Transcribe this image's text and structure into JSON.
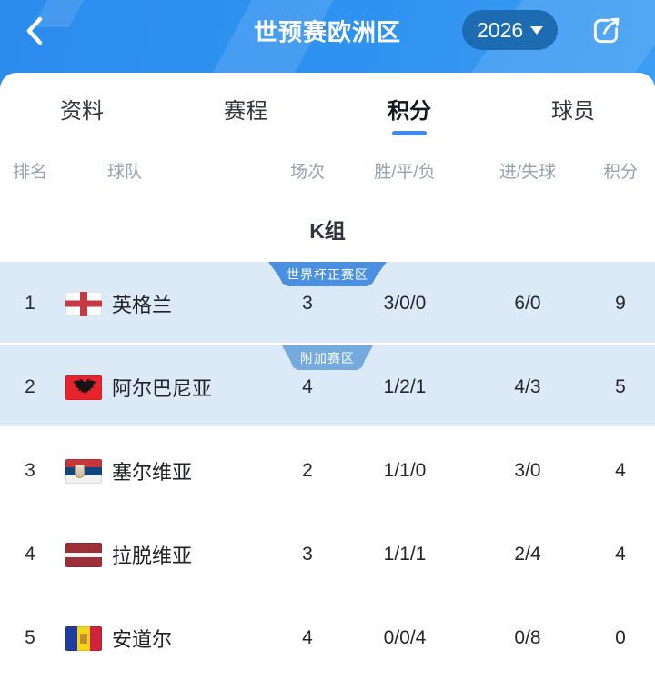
{
  "header": {
    "title": "世预赛欧洲区",
    "year_selector": {
      "label": "2026"
    },
    "icons": {
      "back": "back-chevron-icon",
      "share": "share-icon",
      "caret": "caret-down-icon"
    }
  },
  "tabs": [
    {
      "label": "资料",
      "active": false
    },
    {
      "label": "赛程",
      "active": false
    },
    {
      "label": "积分",
      "active": true
    },
    {
      "label": "球员",
      "active": false
    }
  ],
  "table": {
    "group_title": "K组",
    "columns": [
      {
        "key": "rank",
        "label": "排名"
      },
      {
        "key": "team",
        "label": "球队"
      },
      {
        "key": "played",
        "label": "场次"
      },
      {
        "key": "wdl",
        "label": "胜/平/负"
      },
      {
        "key": "goals",
        "label": "进/失球"
      },
      {
        "key": "points",
        "label": "积分"
      }
    ],
    "rows": [
      {
        "rank": "1",
        "team": "英格兰",
        "flag": "england",
        "flag_icon": "england-flag-icon",
        "badge": {
          "label": "世界杯正赛区",
          "type": "primary",
          "name": "world-cup-zone-badge"
        },
        "highlighted": true,
        "played": "3",
        "wdl": "3/0/0",
        "goals": "6/0",
        "points": "9"
      },
      {
        "rank": "2",
        "team": "阿尔巴尼亚",
        "flag": "albania",
        "flag_icon": "albania-flag-icon",
        "badge": {
          "label": "附加赛区",
          "type": "secondary",
          "name": "playoff-zone-badge"
        },
        "highlighted": true,
        "played": "4",
        "wdl": "1/2/1",
        "goals": "4/3",
        "points": "5"
      },
      {
        "rank": "3",
        "team": "塞尔维亚",
        "flag": "serbia",
        "flag_icon": "serbia-flag-icon",
        "badge": null,
        "highlighted": false,
        "played": "2",
        "wdl": "1/1/0",
        "goals": "3/0",
        "points": "4"
      },
      {
        "rank": "4",
        "team": "拉脱维亚",
        "flag": "latvia",
        "flag_icon": "latvia-flag-icon",
        "badge": null,
        "highlighted": false,
        "played": "3",
        "wdl": "1/1/1",
        "goals": "2/4",
        "points": "4"
      },
      {
        "rank": "5",
        "team": "安道尔",
        "flag": "andorra",
        "flag_icon": "andorra-flag-icon",
        "badge": null,
        "highlighted": false,
        "played": "4",
        "wdl": "0/0/4",
        "goals": "0/8",
        "points": "0"
      }
    ]
  },
  "colors": {
    "header_blue": "#2f92f0",
    "year_pill_blue": "#1d6cb2",
    "accent_blue": "#3e8bed",
    "row_highlight": "#dce9f7",
    "badge_primary": "#4b90e0",
    "badge_secondary": "#74aade"
  }
}
